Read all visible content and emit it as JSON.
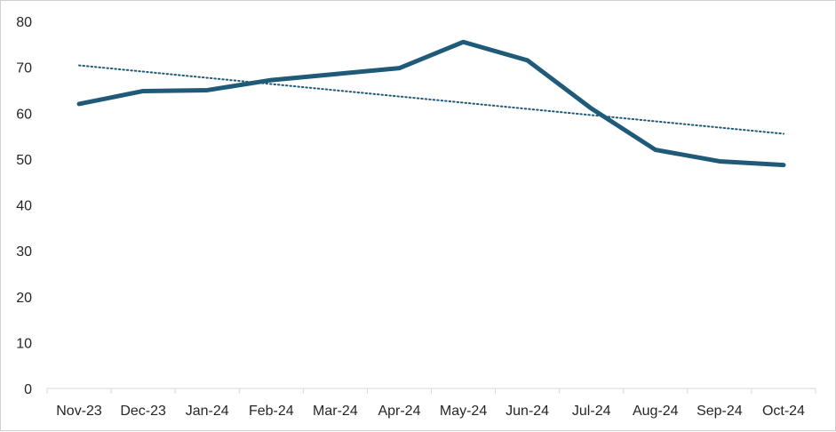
{
  "chart_data": {
    "type": "line",
    "title": "",
    "xlabel": "",
    "ylabel": "",
    "categories": [
      "Nov-23",
      "Dec-23",
      "Jan-24",
      "Feb-24",
      "Mar-24",
      "Apr-24",
      "May-24",
      "Jun-24",
      "Jul-24",
      "Aug-24",
      "Sep-24",
      "Oct-24"
    ],
    "ylim": [
      0,
      80
    ],
    "yticks": [
      0,
      10,
      20,
      30,
      40,
      50,
      60,
      70,
      80
    ],
    "grid": false,
    "legend": "none",
    "series": [
      {
        "values": [
          62.0,
          64.8,
          65.0,
          67.2,
          68.5,
          69.8,
          75.5,
          71.5,
          61.0,
          52.0,
          49.5,
          48.7
        ],
        "color": "#1f5a78",
        "style": "solid"
      }
    ],
    "trendline": {
      "type": "linear",
      "start": 70.4,
      "end": 55.5,
      "color": "#1f5a78",
      "style": "dotted"
    }
  }
}
